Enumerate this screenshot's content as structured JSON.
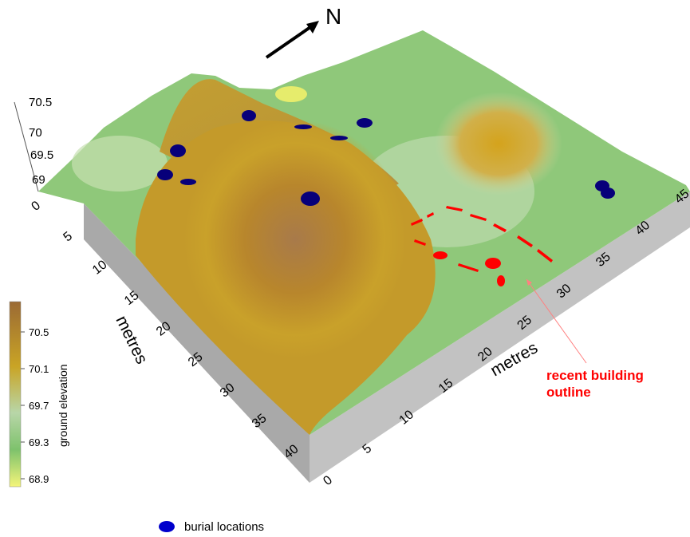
{
  "chart_data": {
    "type": "surface",
    "title": "",
    "north_label": "N",
    "x_axis": {
      "label": "metres",
      "ticks": [
        "0",
        "5",
        "10",
        "15",
        "20",
        "25",
        "30",
        "35",
        "40"
      ]
    },
    "y_axis": {
      "label": "metres",
      "ticks": [
        "0",
        "5",
        "10",
        "15",
        "20",
        "25",
        "30",
        "35",
        "40",
        "45"
      ]
    },
    "z_axis": {
      "ticks": [
        "70.5",
        "70",
        "69.5",
        "69"
      ]
    },
    "colorbar": {
      "label": "ground elevation",
      "ticks": [
        "70.5",
        "70.1",
        "69.7",
        "69.3",
        "68.9"
      ],
      "range": [
        68.9,
        70.8
      ],
      "colors": [
        "#f5f57a",
        "#7ec26c",
        "#b8d6a8",
        "#c9a425",
        "#9b6a34"
      ]
    },
    "annotation": {
      "lines": [
        "recent building",
        "outline"
      ],
      "color": "#ff0000"
    },
    "legend": {
      "label": "burial locations",
      "color": "#0000cc"
    }
  }
}
